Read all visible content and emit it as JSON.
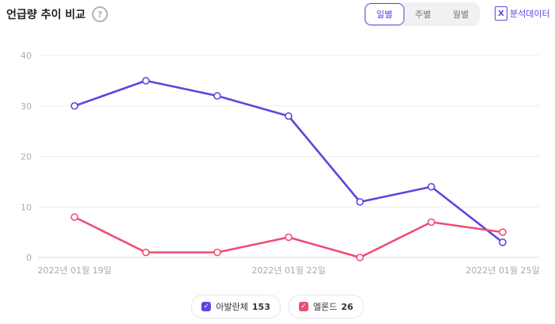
{
  "header": {
    "title": "언급량 추이 비교",
    "help_glyph": "?",
    "tabs": [
      {
        "label": "일별",
        "active": true
      },
      {
        "label": "주별",
        "active": false
      },
      {
        "label": "월별",
        "active": false
      }
    ],
    "analysis_label": "분석데이터",
    "excel_glyph": "X"
  },
  "chart_data": {
    "type": "line",
    "x": [
      "2022년 01월 19일",
      "2022년 01월 20일",
      "2022년 01월 21일",
      "2022년 01월 22일",
      "2022년 01월 23일",
      "2022년 01월 24일",
      "2022년 01월 25일"
    ],
    "x_tick_labels": [
      "2022년 01월 19일",
      "2022년 01월 22일",
      "2022년 01월 25일"
    ],
    "ylim": [
      0,
      40
    ],
    "yticks": [
      0,
      10,
      20,
      30,
      40
    ],
    "grid": true,
    "legend_placement": "bottom",
    "series": [
      {
        "name": "아발란체",
        "total": "153",
        "color": "#5b47e0",
        "values": [
          30,
          35,
          32,
          28,
          11,
          14,
          3
        ]
      },
      {
        "name": "엘론드",
        "total": "26",
        "color": "#ee4d73",
        "values": [
          8,
          1,
          1,
          4,
          0,
          7,
          5
        ]
      }
    ]
  }
}
